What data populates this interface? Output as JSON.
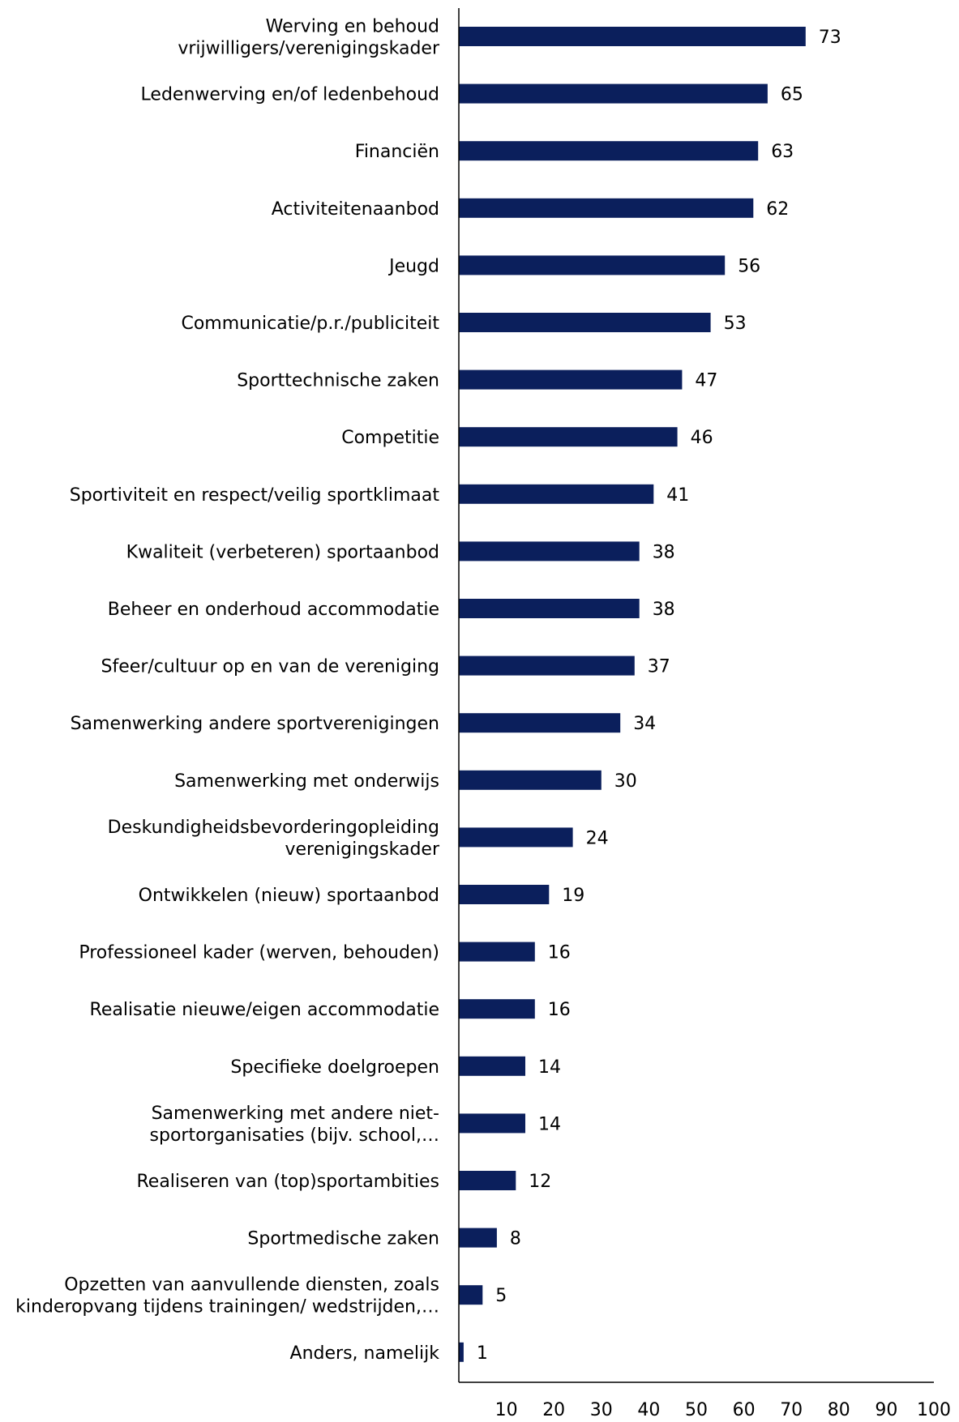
{
  "chart_data": {
    "type": "bar",
    "orientation": "horizontal",
    "color": "#0b1f5c",
    "categories": [
      [
        "Werving en behoud",
        "vrijwilligers/verenigingskader"
      ],
      [
        "Ledenwerving en/of ledenbehoud"
      ],
      [
        "Financiën"
      ],
      [
        "Activiteitenaanbod"
      ],
      [
        "Jeugd"
      ],
      [
        "Communicatie/p.r./publiciteit"
      ],
      [
        "Sporttechnische zaken"
      ],
      [
        "Competitie"
      ],
      [
        "Sportiviteit en respect/veilig sportklimaat"
      ],
      [
        "Kwaliteit (verbeteren) sportaanbod"
      ],
      [
        "Beheer en onderhoud accommodatie"
      ],
      [
        "Sfeer/cultuur op en van de vereniging"
      ],
      [
        "Samenwerking andere sportverenigingen"
      ],
      [
        "Samenwerking met onderwijs"
      ],
      [
        "Deskundigheidsbevorderingopleiding",
        "verenigingskader"
      ],
      [
        "Ontwikkelen (nieuw) sportaanbod"
      ],
      [
        "Professioneel kader (werven, behouden)"
      ],
      [
        "Realisatie nieuwe/eigen accommodatie"
      ],
      [
        "Specifieke doelgroepen"
      ],
      [
        "Samenwerking met andere niet-",
        "sportorganisaties (bijv. school,…"
      ],
      [
        "Realiseren van (top)sportambities"
      ],
      [
        "Sportmedische zaken"
      ],
      [
        "Opzetten van aanvullende diensten, zoals",
        "kinderopvang tijdens trainingen/ wedstrijden,…"
      ],
      [
        "Anders, namelijk"
      ]
    ],
    "values": [
      73,
      65,
      63,
      62,
      56,
      53,
      47,
      46,
      41,
      38,
      38,
      37,
      34,
      30,
      24,
      19,
      16,
      16,
      14,
      14,
      12,
      8,
      5,
      1
    ],
    "xlim": [
      0,
      100
    ],
    "xticks": [
      "10",
      "20",
      "30",
      "40",
      "50",
      "60",
      "70",
      "80",
      "90",
      "100"
    ],
    "grid": false,
    "legend": "none"
  }
}
